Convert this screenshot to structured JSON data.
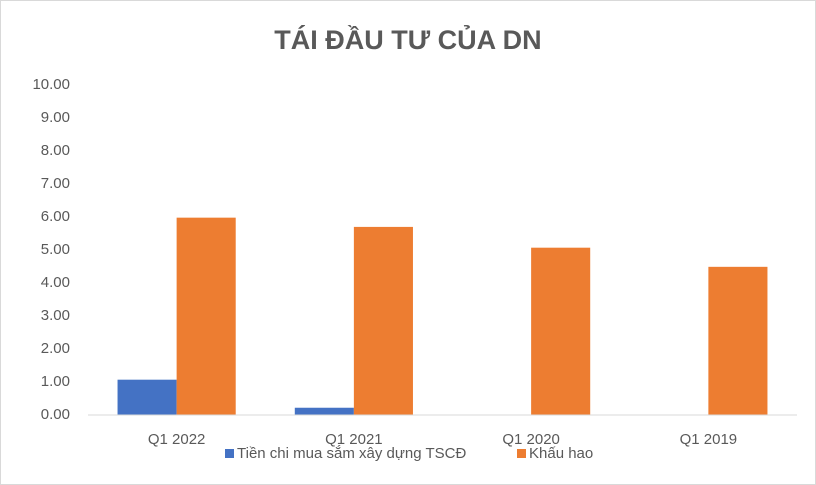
{
  "chart_data": {
    "type": "bar",
    "title": "TÁI ĐẦU TƯ CỦA DN",
    "categories": [
      "Q1 2022",
      "Q1 2021",
      "Q1 2020",
      "Q1 2019"
    ],
    "series": [
      {
        "name": "Tiền chi mua sắm xây dựng TSCĐ",
        "color": "#4472c4",
        "values": [
          1.07,
          0.22,
          0.01,
          0.01
        ]
      },
      {
        "name": "Khấu hao",
        "color": "#ed7d31",
        "values": [
          5.98,
          5.7,
          5.07,
          4.49
        ]
      }
    ],
    "ylim": [
      0,
      10
    ],
    "yticks": [
      {
        "value": 0,
        "label": "0.00"
      },
      {
        "value": 1,
        "label": "1.00"
      },
      {
        "value": 2,
        "label": "2.00"
      },
      {
        "value": 3,
        "label": "3.00"
      },
      {
        "value": 4,
        "label": "4.00"
      },
      {
        "value": 5,
        "label": "5.00"
      },
      {
        "value": 6,
        "label": "6.00"
      },
      {
        "value": 7,
        "label": "7.00"
      },
      {
        "value": 8,
        "label": "8.00"
      },
      {
        "value": 9,
        "label": "9.00"
      },
      {
        "value": 10,
        "label": "10.00"
      }
    ],
    "grid": false,
    "legend": "bottom"
  }
}
